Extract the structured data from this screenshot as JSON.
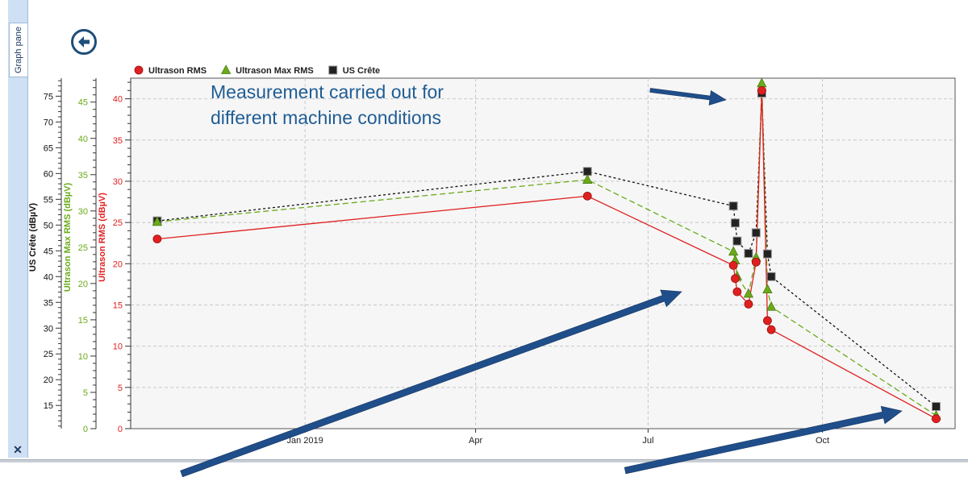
{
  "pane": {
    "tab_label": "Graph pane",
    "close_glyph": "✕"
  },
  "toolbar": {
    "back_icon": "arrow-left-circle-icon"
  },
  "chart_data": {
    "type": "line",
    "x_axis": {
      "scale": "date",
      "range": [
        "2018-10-01",
        "2019-12-10"
      ],
      "ticks": [
        {
          "date": "2019-01-01",
          "label": "Jan 2019"
        },
        {
          "date": "2019-04-01",
          "label": "Apr"
        },
        {
          "date": "2019-07-01",
          "label": "Jul"
        },
        {
          "date": "2019-10-01",
          "label": "Oct"
        }
      ]
    },
    "y_axes": [
      {
        "id": "rms",
        "label": "Ultrason RMS (dBµV)",
        "color": "#e02020",
        "range": [
          0,
          42.5
        ],
        "major": 5,
        "minor": 1
      },
      {
        "id": "max",
        "label": "Ultrason Max RMS (dBµV)",
        "color": "#6aaa1a",
        "range": [
          0,
          48.3
        ],
        "major": 5,
        "minor": 1
      },
      {
        "id": "crete",
        "label": "US Crête (dBµV)",
        "color": "#111111",
        "range": [
          10.5,
          78.5
        ],
        "major": 5,
        "minor": 1
      }
    ],
    "grid": true,
    "legend_position": "top-left",
    "series": [
      {
        "name": "Ultrason RMS",
        "axis": "rms",
        "color": "#e02020",
        "marker": "circle",
        "line": "solid",
        "points": [
          [
            "2018-10-15",
            23.0
          ],
          [
            "2019-05-30",
            28.2
          ],
          [
            "2019-08-15",
            19.8
          ],
          [
            "2019-08-16",
            18.2
          ],
          [
            "2019-08-17",
            16.6
          ],
          [
            "2019-08-23",
            15.1
          ],
          [
            "2019-08-27",
            20.2
          ],
          [
            "2019-08-30",
            41.0
          ],
          [
            "2019-09-02",
            13.1
          ],
          [
            "2019-09-04",
            12.0
          ],
          [
            "2019-11-30",
            1.2
          ]
        ]
      },
      {
        "name": "Ultrason Max RMS",
        "axis": "max",
        "color": "#6aaa1a",
        "marker": "triangle",
        "line": "dashed",
        "points": [
          [
            "2018-10-15",
            28.5
          ],
          [
            "2019-05-30",
            34.3
          ],
          [
            "2019-08-15",
            24.4
          ],
          [
            "2019-08-16",
            23.2
          ],
          [
            "2019-08-17",
            21.0
          ],
          [
            "2019-08-23",
            18.6
          ],
          [
            "2019-08-27",
            23.6
          ],
          [
            "2019-08-30",
            47.6
          ],
          [
            "2019-09-02",
            19.2
          ],
          [
            "2019-09-04",
            16.8
          ],
          [
            "2019-11-30",
            1.8
          ]
        ]
      },
      {
        "name": "US Crête",
        "axis": "crete",
        "color": "#111111",
        "marker": "square",
        "line": "dotted",
        "points": [
          [
            "2018-10-15",
            50.8
          ],
          [
            "2019-05-30",
            60.4
          ],
          [
            "2019-08-15",
            53.7
          ],
          [
            "2019-08-16",
            50.4
          ],
          [
            "2019-08-17",
            46.9
          ],
          [
            "2019-08-23",
            44.5
          ],
          [
            "2019-08-27",
            48.5
          ],
          [
            "2019-08-30",
            75.6
          ],
          [
            "2019-09-02",
            44.4
          ],
          [
            "2019-09-04",
            40.0
          ],
          [
            "2019-11-30",
            14.8
          ]
        ]
      }
    ],
    "annotation": {
      "text_lines": [
        "Measurement carried out for",
        "different machine conditions"
      ],
      "color": "#1f5d95",
      "arrow_color": "#1f4e8a"
    }
  }
}
